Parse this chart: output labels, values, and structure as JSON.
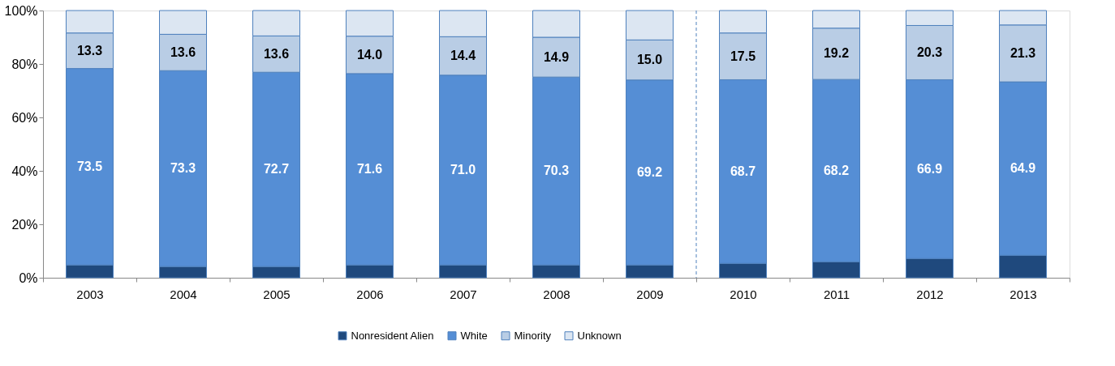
{
  "chart_data": {
    "type": "bar",
    "stacked": true,
    "categories": [
      "2003",
      "2004",
      "2005",
      "2006",
      "2007",
      "2008",
      "2009",
      "2010",
      "2011",
      "2012",
      "2013"
    ],
    "series": [
      {
        "name": "Nonresident Alien",
        "color": "#1f497d",
        "values": [
          4.8,
          4.2,
          4.2,
          4.8,
          4.8,
          4.8,
          4.8,
          5.4,
          6.0,
          7.2,
          8.4
        ]
      },
      {
        "name": "White",
        "color": "#558ed5",
        "values": [
          73.5,
          73.3,
          72.7,
          71.6,
          71.0,
          70.3,
          69.2,
          68.7,
          68.2,
          66.9,
          64.9
        ],
        "value_labels": [
          "73.5",
          "73.3",
          "72.7",
          "71.6",
          "71.0",
          "70.3",
          "69.2",
          "68.7",
          "68.2",
          "66.9",
          "64.9"
        ]
      },
      {
        "name": "Minority",
        "color": "#b9cde5",
        "values": [
          13.3,
          13.6,
          13.6,
          14.0,
          14.4,
          14.9,
          15.0,
          17.5,
          19.2,
          20.3,
          21.3
        ],
        "value_labels": [
          "13.3",
          "13.6",
          "13.6",
          "14.0",
          "14.4",
          "14.9",
          "15.0",
          "17.5",
          "19.2",
          "20.3",
          "21.3"
        ]
      },
      {
        "name": "Unknown",
        "color": "#dce6f2",
        "values": [
          8.4,
          8.9,
          9.5,
          9.6,
          9.8,
          10.0,
          11.0,
          8.4,
          6.6,
          5.6,
          5.4
        ]
      }
    ],
    "ylim": [
      0,
      100
    ],
    "yticks": [
      {
        "value": 0,
        "label": "0%"
      },
      {
        "value": 20,
        "label": "20%"
      },
      {
        "value": 40,
        "label": "40%"
      },
      {
        "value": 60,
        "label": "60%"
      },
      {
        "value": 80,
        "label": "80%"
      },
      {
        "value": 100,
        "label": "100%"
      }
    ],
    "ref_lines": [
      {
        "axis": "x",
        "value": "2010",
        "color": "#4f81bd",
        "line_style": "dashed"
      }
    ],
    "grid": false,
    "legend": "bottom"
  }
}
